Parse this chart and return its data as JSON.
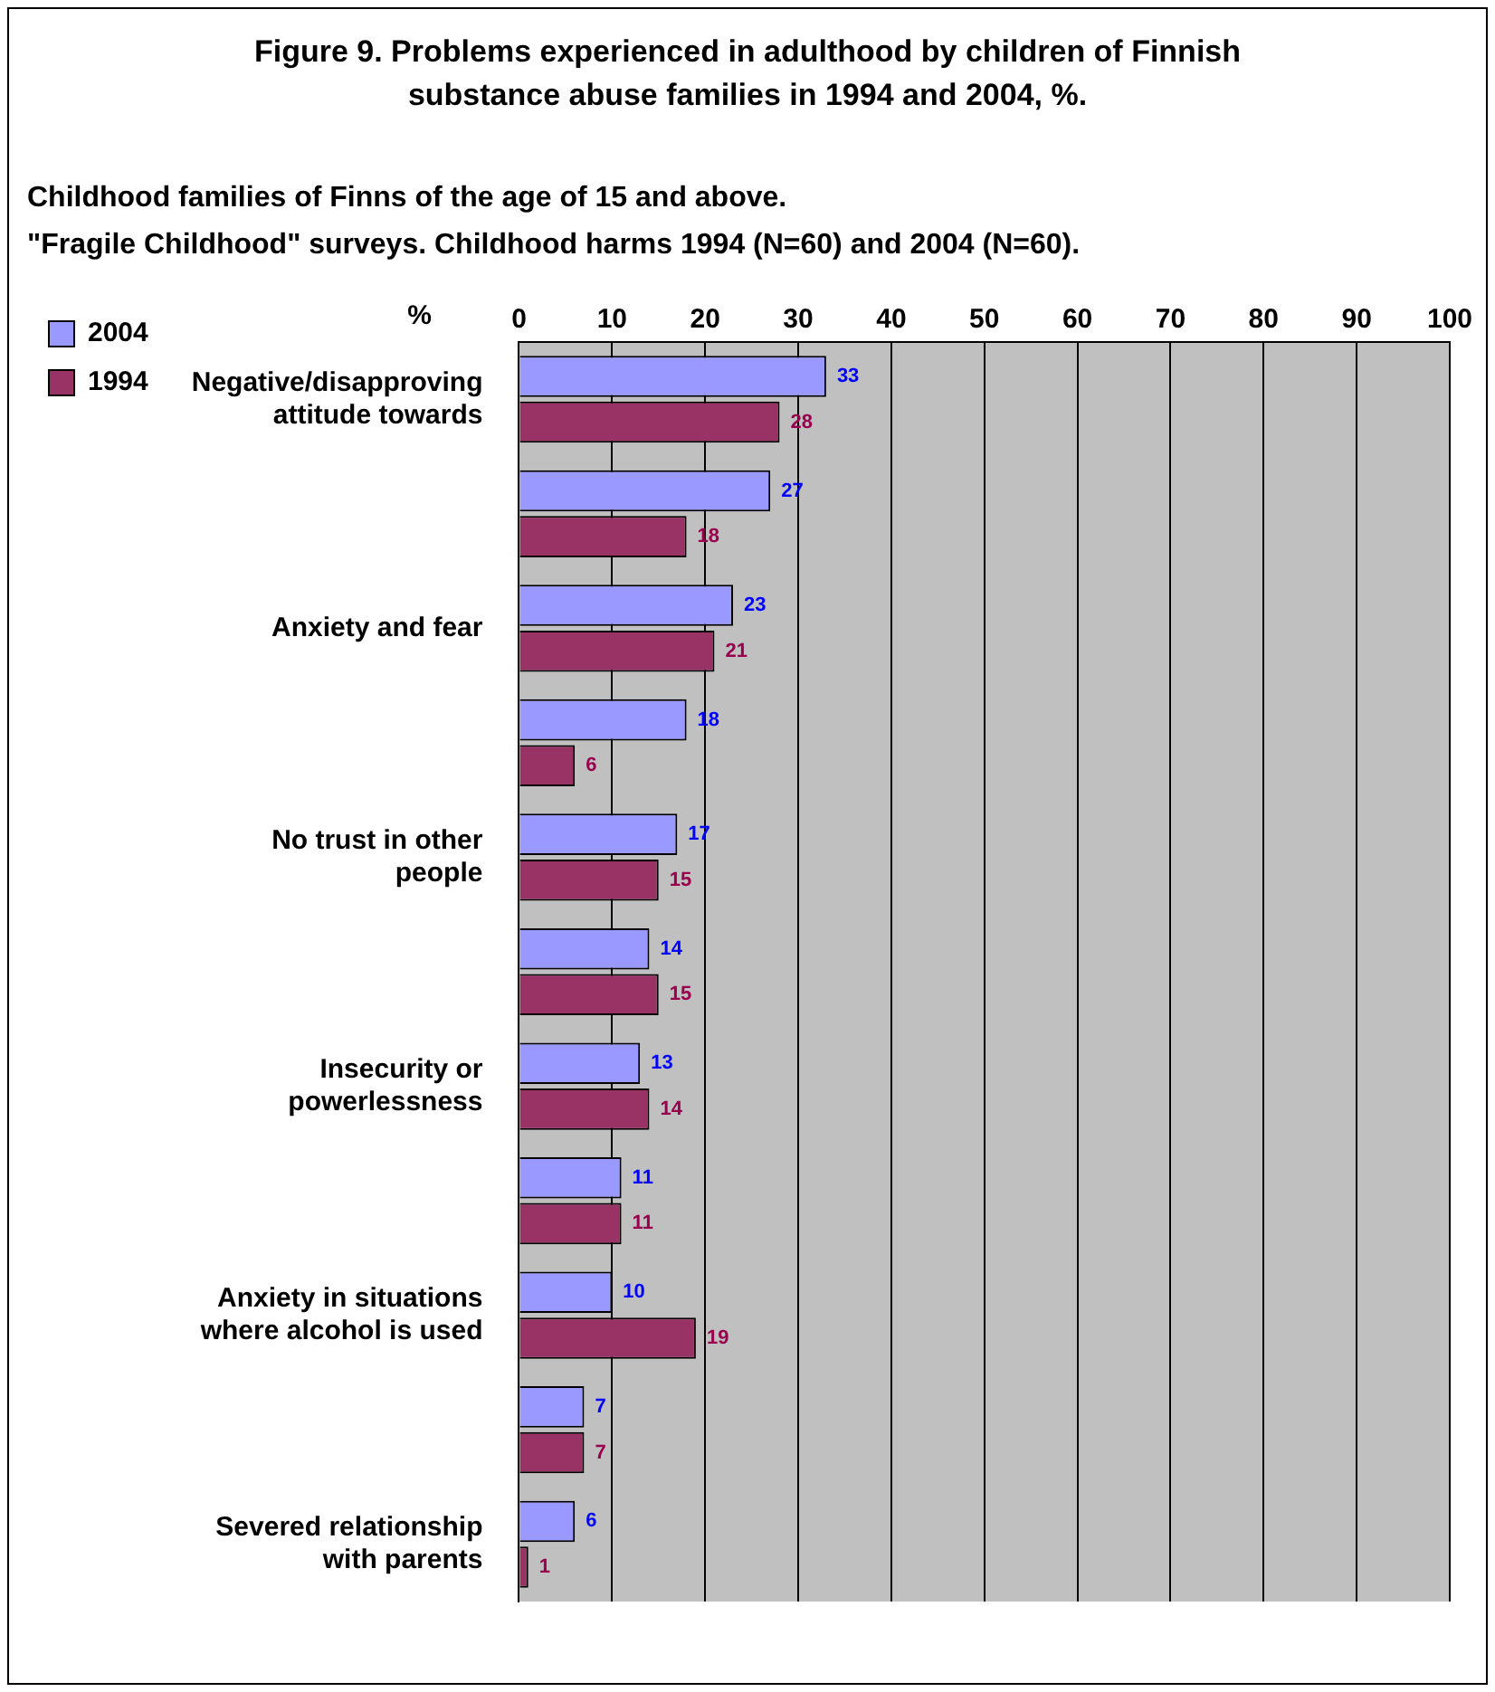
{
  "chart_data": {
    "type": "bar",
    "orientation": "horizontal",
    "title": "Figure 9. Problems experienced in adulthood by children of Finnish substance abuse families in 1994 and 2004, %.",
    "subtitle": "Childhood families of Finns of the age of 15 and above.\n\"Fragile Childhood\" surveys. Childhood harms 1994 (N=60) and 2004 (N=60).",
    "xlabel": "%",
    "categories": [
      "Negative/disapproving attitude towards",
      null,
      "Anxiety and fear",
      null,
      "No trust in other people",
      null,
      "Insecurity or powerlessness",
      null,
      "Anxiety in situations where alcohol is used",
      null,
      "Severed relationship with parents"
    ],
    "series": [
      {
        "name": "2004",
        "color": "#9999ff",
        "values": [
          33,
          27,
          23,
          18,
          17,
          14,
          13,
          11,
          10,
          7,
          6
        ]
      },
      {
        "name": "1994",
        "color": "#993366",
        "values": [
          28,
          18,
          21,
          6,
          15,
          15,
          14,
          11,
          19,
          7,
          1
        ]
      }
    ],
    "xlim": [
      0,
      100
    ],
    "xticks": [
      0,
      10,
      20,
      30,
      40,
      50,
      60,
      70,
      80,
      90,
      100
    ],
    "grid": "x",
    "legend": "top left",
    "data_labels": true
  }
}
